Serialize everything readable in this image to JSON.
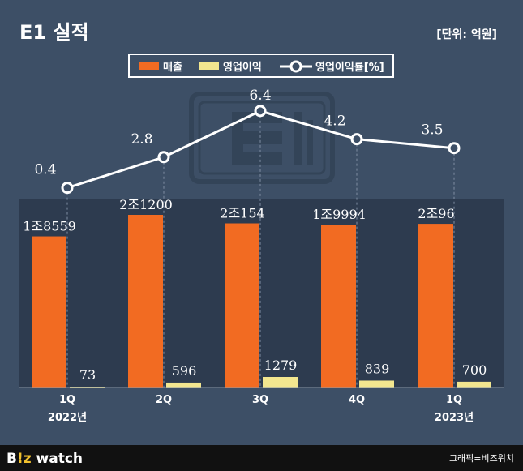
{
  "header": {
    "title": "E1 실적",
    "unit": "[단위: 억원]"
  },
  "footer": {
    "logo_prefix": "B",
    "logo_mid": "!z",
    "logo_suffix": " watch",
    "credit": "그래픽=비즈워치"
  },
  "colors": {
    "background": "#3d4f66",
    "plot_area": "#2d3b4f",
    "revenue": "#f26b22",
    "operating_profit": "#f2e68f",
    "margin_line": "#ffffff",
    "footer_bg": "#111111",
    "logo_accent": "#f2c12e"
  },
  "watermark_icon": "e1-logo-icon",
  "chart_data": {
    "type": "bar",
    "legend_position": "top-center",
    "categories": [
      "1Q",
      "2Q",
      "3Q",
      "4Q",
      "1Q"
    ],
    "year_labels": [
      "2022년",
      "",
      "",
      "",
      "2023년"
    ],
    "series": [
      {
        "name": "매출",
        "kind": "bar",
        "values": [
          18559,
          21200,
          20154,
          19994,
          20096
        ],
        "labels": [
          "1조8559",
          "2조1200",
          "2조154",
          "1조9994",
          "2조96"
        ]
      },
      {
        "name": "영업이익",
        "kind": "bar",
        "values": [
          73,
          596,
          1279,
          839,
          700
        ],
        "labels": [
          "73",
          "596",
          "1279",
          "839",
          "700"
        ]
      },
      {
        "name": "영업이익률[%]",
        "kind": "line",
        "values": [
          0.4,
          2.8,
          6.4,
          4.2,
          3.5
        ],
        "labels": [
          "0.4",
          "2.8",
          "6.4",
          "4.2",
          "3.5"
        ]
      }
    ]
  }
}
